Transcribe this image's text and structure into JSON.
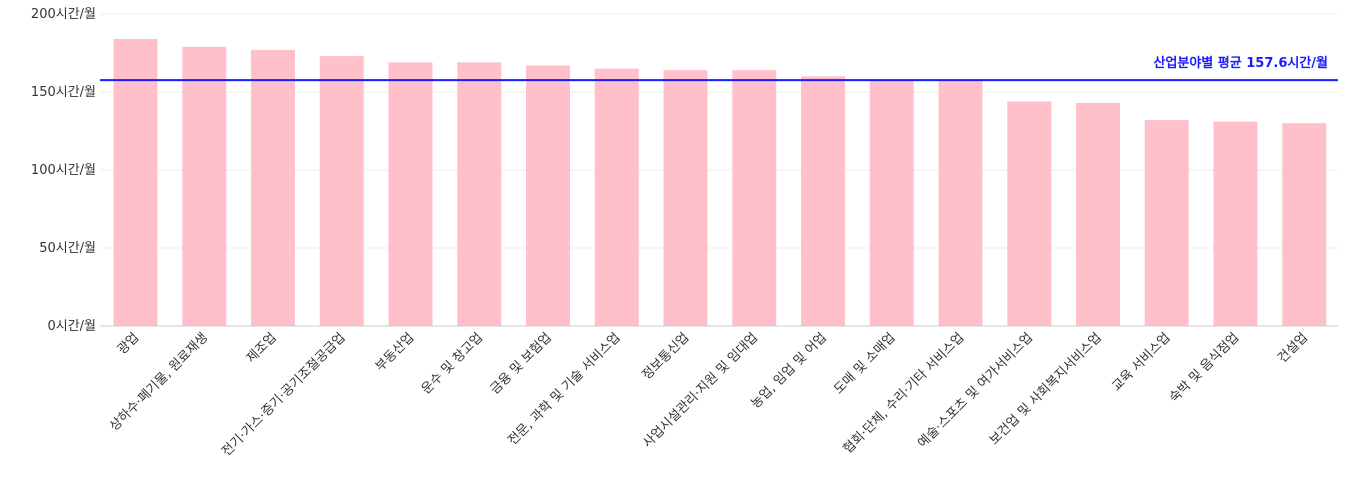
{
  "chart_data": {
    "type": "bar",
    "categories": [
      "광업",
      "상하수·폐기물, 원료재생",
      "제조업",
      "전기·가스·증기·공기조절공급업",
      "부동산업",
      "운수 및 창고업",
      "금융 및 보험업",
      "전문, 과학 및 기술 서비스업",
      "정보통신업",
      "사업시설관리·지원 및 임대업",
      "농업, 임업 및 어업",
      "도매 및 소매업",
      "협회·단체, 수리·기타 서비스업",
      "예술·스포츠 및 여가서비스업",
      "보건업 및 사회복지서비스업",
      "교육 서비스업",
      "숙박 및 음식점업",
      "건설업"
    ],
    "values": [
      184,
      179,
      177,
      173,
      169,
      169,
      167,
      165,
      164,
      164,
      160,
      158,
      157,
      144,
      143,
      132,
      131,
      130
    ],
    "ylim": [
      0,
      200
    ],
    "yticks": [
      "0시간/월",
      "50시간/월",
      "100시간/월",
      "150시간/월",
      "200시간/월"
    ],
    "ytick_values": [
      0,
      50,
      100,
      150,
      200
    ],
    "average": {
      "value": 157.6,
      "label": "산업분야별 평균 157.6시간/월",
      "color": "#1a1aff"
    },
    "bar_color": "#ffc0cb",
    "grid": true
  }
}
